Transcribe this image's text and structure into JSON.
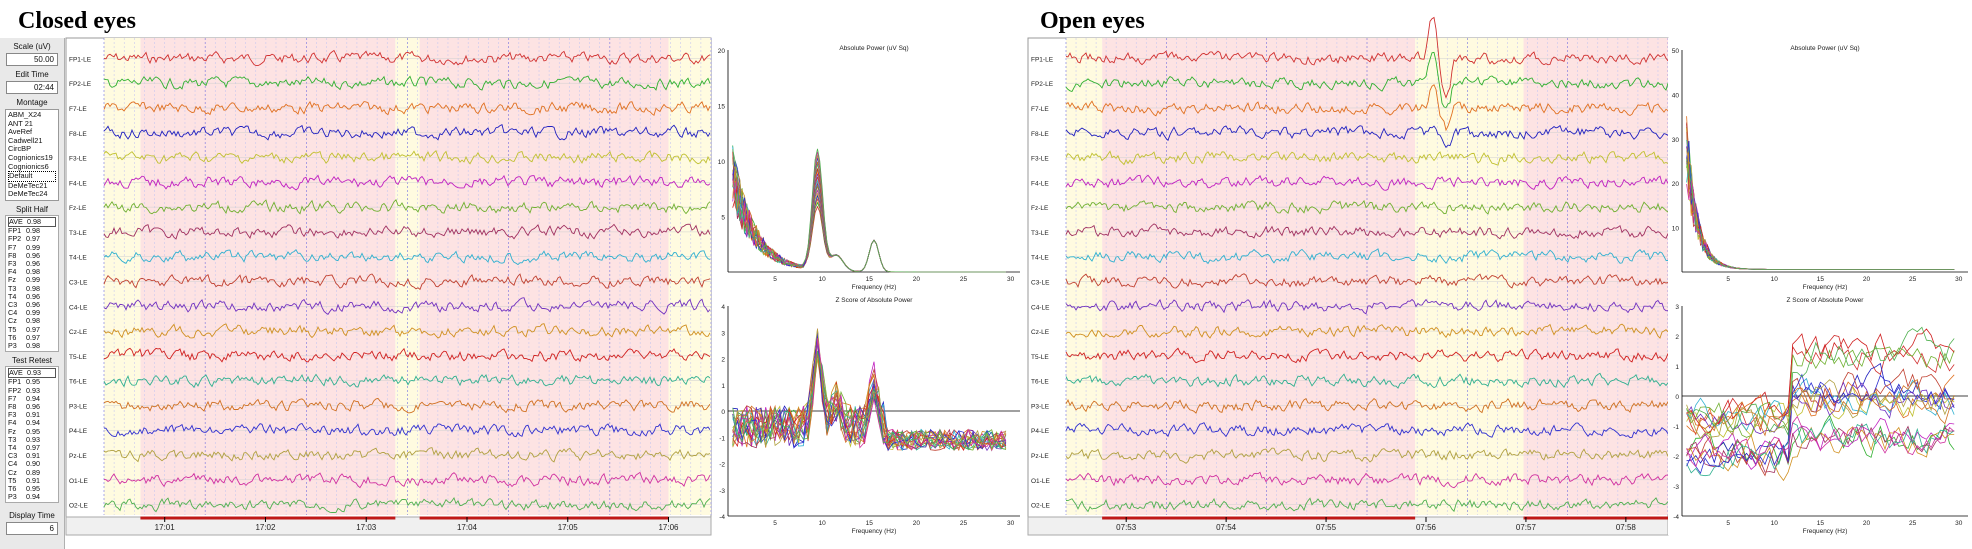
{
  "headings": {
    "closed": "Closed eyes",
    "open": "Open eyes"
  },
  "sidebar": {
    "scale_label": "Scale (uV)",
    "scale_value": "50.00",
    "edit_time_label": "Edit Time",
    "edit_time_value": "02:44",
    "montage_label": "Montage",
    "montage_items": [
      "ABM_X24",
      "ANT 21",
      "AveRef",
      "Cadwell21",
      "CircBP",
      "Cognionics19",
      "Cognionics6",
      "Default",
      "DeMeTec21",
      "DeMeTec24"
    ],
    "split_half_label": "Split Half",
    "split_half": [
      [
        "AVE",
        "0.98"
      ],
      [
        "FP1",
        "0.98"
      ],
      [
        "FP2",
        "0.97"
      ],
      [
        "F7",
        "0.99"
      ],
      [
        "F8",
        "0.96"
      ],
      [
        "F3",
        "0.96"
      ],
      [
        "F4",
        "0.98"
      ],
      [
        "Fz",
        "0.99"
      ],
      [
        "T3",
        "0.98"
      ],
      [
        "T4",
        "0.96"
      ],
      [
        "C3",
        "0.96"
      ],
      [
        "C4",
        "0.99"
      ],
      [
        "Cz",
        "0.98"
      ],
      [
        "T5",
        "0.97"
      ],
      [
        "T6",
        "0.97"
      ],
      [
        "P3",
        "0.98"
      ]
    ],
    "test_retest_label": "Test Retest",
    "test_retest": [
      [
        "AVE",
        "0.93"
      ],
      [
        "FP1",
        "0.95"
      ],
      [
        "FP2",
        "0.93"
      ],
      [
        "F7",
        "0.94"
      ],
      [
        "F8",
        "0.96"
      ],
      [
        "F3",
        "0.91"
      ],
      [
        "F4",
        "0.94"
      ],
      [
        "Fz",
        "0.95"
      ],
      [
        "T3",
        "0.93"
      ],
      [
        "T4",
        "0.97"
      ],
      [
        "C3",
        "0.91"
      ],
      [
        "C4",
        "0.90"
      ],
      [
        "Cz",
        "0.89"
      ],
      [
        "T5",
        "0.91"
      ],
      [
        "T6",
        "0.95"
      ],
      [
        "P3",
        "0.94"
      ]
    ],
    "display_time_label": "Display Time",
    "display_time_value": "6"
  },
  "channels": [
    "FP1-LE",
    "FP2-LE",
    "F7-LE",
    "F8-LE",
    "F3-LE",
    "F4-LE",
    "Fz-LE",
    "T3-LE",
    "T4-LE",
    "C3-LE",
    "C4-LE",
    "Cz-LE",
    "T5-LE",
    "T6-LE",
    "P3-LE",
    "P4-LE",
    "Pz-LE",
    "O1-LE",
    "O2-LE"
  ],
  "channel_colors": [
    "#d03030",
    "#30b030",
    "#e07020",
    "#2020c0",
    "#c0c030",
    "#c020c0",
    "#70b030",
    "#a03060",
    "#30b0d0",
    "#c04030",
    "#7030c0",
    "#d09020",
    "#d02020",
    "#30b090",
    "#d07020",
    "#3030d0",
    "#b0a040",
    "#d030a0",
    "#50b050"
  ],
  "closed_time_ticks": [
    "17:01",
    "17:02",
    "17:03",
    "17:04",
    "17:05",
    "17:06"
  ],
  "open_time_ticks": [
    "07:53",
    "07:54",
    "07:55",
    "07:56",
    "07:57",
    "07:58"
  ],
  "spectra": {
    "abs_title": "Absolute Power (uV Sq)",
    "z_title": "Z Score of Absolute Power",
    "xlabel": "Frequency (Hz)",
    "freq_ticks": [
      "5",
      "10",
      "15",
      "20",
      "25",
      "30"
    ],
    "closed_abs_yticks": [
      "20",
      "15",
      "10",
      "5"
    ],
    "open_abs_yticks": [
      "50",
      "40",
      "30",
      "20",
      "10"
    ],
    "closed_z_yticks": [
      "4",
      "3",
      "2",
      "1",
      "0",
      "-1",
      "-2",
      "-3",
      "-4"
    ],
    "open_z_yticks": [
      "3",
      "2",
      "1",
      "0",
      "-1",
      "-2",
      "-3",
      "-4"
    ]
  },
  "colors": {
    "epoch_pink": "#fde3e3",
    "epoch_yellow": "#fffbe0",
    "axis": "#000000",
    "marker_red": "#c01818"
  }
}
